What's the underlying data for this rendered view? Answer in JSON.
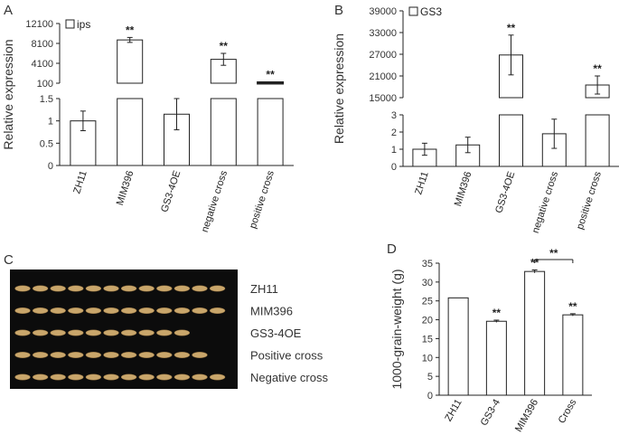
{
  "panels": {
    "A": "A",
    "B": "B",
    "C": "C",
    "D": "D"
  },
  "chart_data": [
    {
      "id": "A",
      "type": "bar",
      "title": "",
      "legend": "ips",
      "legend_position": "top-left",
      "ylabel": "Relative expression",
      "broken_axis": true,
      "categories": [
        "ZH11",
        "MIM396",
        "GS3-4OE",
        "negative cross",
        "positive cross"
      ],
      "values": [
        1.0,
        8800,
        1.15,
        4900,
        290
      ],
      "errors": [
        0.22,
        500,
        0.35,
        1200,
        100
      ],
      "significance": [
        "",
        "**",
        "",
        "**",
        "**"
      ],
      "lower_axis": {
        "ylim": [
          0,
          1.5
        ],
        "ticks": [
          "0",
          "0.5",
          "1",
          "1.5"
        ]
      },
      "upper_axis": {
        "ylim": [
          100,
          12100
        ],
        "ticks": [
          "100",
          "4100",
          "8100",
          "12100"
        ]
      }
    },
    {
      "id": "B",
      "type": "bar",
      "title": "",
      "legend": "GS3",
      "legend_position": "top-left",
      "ylabel": "Relative expression",
      "broken_axis": true,
      "categories": [
        "ZH11",
        "MIM396",
        "GS3-4OE",
        "negative cross",
        "positive cross"
      ],
      "values": [
        1.0,
        1.25,
        26800,
        1.9,
        18500
      ],
      "errors": [
        0.35,
        0.45,
        5500,
        0.85,
        2500
      ],
      "significance": [
        "",
        "",
        "**",
        "",
        "**"
      ],
      "lower_axis": {
        "ylim": [
          0,
          3
        ],
        "ticks": [
          "0",
          "1",
          "2",
          "3"
        ]
      },
      "upper_axis": {
        "ylim": [
          15000,
          39000
        ],
        "ticks": [
          "15000",
          "21000",
          "27000",
          "33000",
          "39000"
        ]
      }
    },
    {
      "id": "D",
      "type": "bar",
      "title": "",
      "ylabel": "1000-grain-weight (g)",
      "categories": [
        "ZH11",
        "GS3-4",
        "MIM396",
        "Cross"
      ],
      "values": [
        25.8,
        19.6,
        32.8,
        21.3
      ],
      "errors": [
        0,
        0.3,
        0.4,
        0.3
      ],
      "significance": [
        "",
        "**",
        "**",
        "**"
      ],
      "bracket": {
        "from": "MIM396",
        "to": "Cross",
        "label": "**"
      },
      "ylim": [
        0,
        35
      ],
      "ticks": [
        "0",
        "5",
        "10",
        "15",
        "20",
        "25",
        "30",
        "35"
      ]
    }
  ],
  "grain_photo": {
    "rows": [
      {
        "label": "ZH11",
        "count": 12
      },
      {
        "label": "MIM396",
        "count": 12
      },
      {
        "label": "GS3-4OE",
        "count": 10
      },
      {
        "label": "Positive cross",
        "count": 11
      },
      {
        "label": "Negative cross",
        "count": 12
      }
    ],
    "colors": {
      "background": "#0c0c0c",
      "grain": "#c9a66b"
    }
  }
}
